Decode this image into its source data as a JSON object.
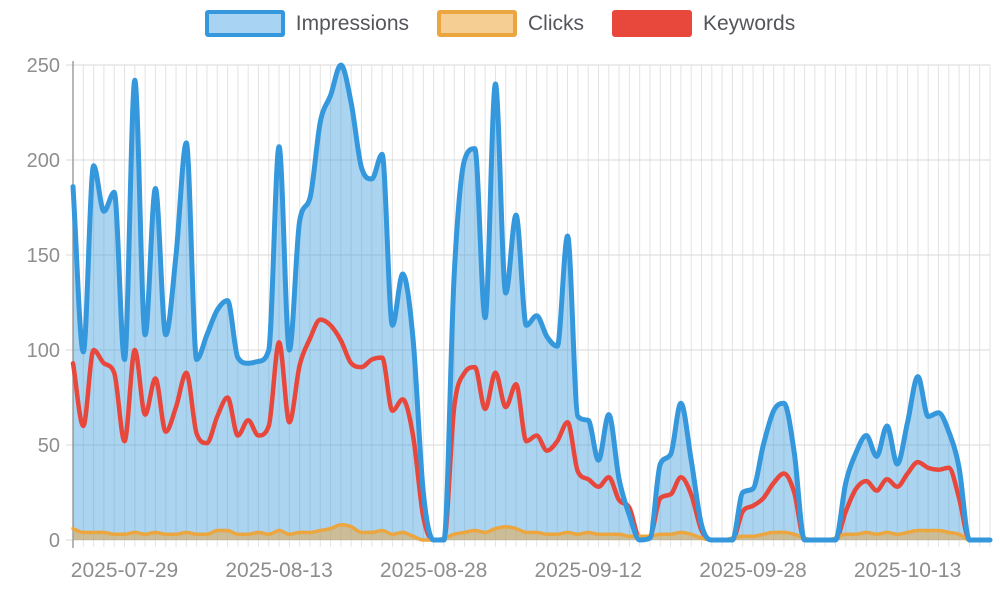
{
  "legend": {
    "items": [
      {
        "id": "impressions",
        "label": "Impressions",
        "swatch_fill": "#a9d3f2",
        "swatch_border": "#3598dc"
      },
      {
        "id": "clicks",
        "label": "Clicks",
        "swatch_fill": "#f4ce93",
        "swatch_border": "#eca63f"
      },
      {
        "id": "keywords",
        "label": "Keywords",
        "swatch_fill": "#e8473c",
        "swatch_border": "#e8473c"
      }
    ]
  },
  "chart_data": {
    "type": "area",
    "title": "",
    "xlabel": "",
    "ylabel": "",
    "n_points": 90,
    "ylim": [
      0,
      250
    ],
    "yticks": [
      0,
      50,
      100,
      150,
      200,
      250
    ],
    "xticks": [
      {
        "index": 5,
        "label": "2025-07-29"
      },
      {
        "index": 20,
        "label": "2025-08-13"
      },
      {
        "index": 35,
        "label": "2025-08-28"
      },
      {
        "index": 50,
        "label": "2025-09-12"
      },
      {
        "index": 66,
        "label": "2025-09-28"
      },
      {
        "index": 81,
        "label": "2025-10-13"
      }
    ],
    "grid": "both",
    "legend_position": "top",
    "style": {
      "grid_vertical_color": "#e3e3e3",
      "grid_horizontal_color": "#d9d9d9",
      "axis_line_color": "#9f9f9f",
      "tick_text_color": "#8e8e8e",
      "background": "#ffffff"
    },
    "series": [
      {
        "name": "Impressions",
        "style": "area",
        "color": "#3598dc",
        "fill": "rgba(53,152,220,0.42)",
        "line_width": 5,
        "values": [
          186,
          99,
          197,
          173,
          183,
          95,
          242,
          108,
          185,
          108,
          150,
          209,
          95,
          108,
          121,
          126,
          96,
          93,
          94,
          100,
          207,
          100,
          168,
          180,
          220,
          234,
          250,
          230,
          196,
          190,
          203,
          113,
          140,
          106,
          25,
          0,
          0,
          140,
          200,
          206,
          117,
          240,
          130,
          171,
          113,
          118,
          107,
          102,
          160,
          65,
          63,
          42,
          66,
          32,
          13,
          0,
          1,
          40,
          45,
          72,
          42,
          8,
          0,
          0,
          0,
          25,
          27,
          50,
          68,
          72,
          46,
          0,
          0,
          0,
          0,
          30,
          46,
          55,
          44,
          60,
          40,
          62,
          86,
          65,
          67,
          57,
          38,
          0,
          0,
          0
        ]
      },
      {
        "name": "Clicks",
        "style": "area",
        "color": "#eca63f",
        "fill": "rgba(236,166,63,0.5)",
        "line_width": 3.5,
        "values": [
          6,
          4,
          4,
          4,
          3,
          3,
          4,
          3,
          4,
          3,
          3,
          4,
          3,
          3,
          5,
          5,
          3,
          3,
          4,
          3,
          5,
          3,
          4,
          4,
          5,
          6,
          8,
          7,
          4,
          4,
          5,
          3,
          4,
          2,
          0,
          0,
          1,
          3,
          4,
          5,
          4,
          6,
          7,
          6,
          4,
          4,
          3,
          3,
          4,
          3,
          4,
          3,
          3,
          3,
          2,
          2,
          2,
          3,
          3,
          4,
          3,
          1,
          0,
          0,
          1,
          2,
          2,
          3,
          4,
          4,
          3,
          1,
          0,
          0,
          1,
          3,
          3,
          4,
          3,
          4,
          3,
          4,
          5,
          5,
          5,
          4,
          3,
          0,
          0,
          0
        ]
      },
      {
        "name": "Keywords",
        "style": "line",
        "color": "#e8473c",
        "fill": "none",
        "line_width": 4.5,
        "values": [
          93,
          60,
          100,
          93,
          88,
          52,
          100,
          66,
          85,
          57,
          70,
          88,
          56,
          51,
          65,
          75,
          55,
          63,
          55,
          60,
          104,
          62,
          92,
          106,
          116,
          113,
          105,
          93,
          91,
          95,
          96,
          68,
          74,
          55,
          12,
          0,
          0,
          70,
          88,
          91,
          69,
          88,
          70,
          82,
          52,
          55,
          47,
          52,
          62,
          36,
          32,
          28,
          33,
          21,
          17,
          1,
          2,
          22,
          24,
          33,
          24,
          5,
          0,
          0,
          0,
          15,
          18,
          22,
          30,
          35,
          25,
          0,
          0,
          0,
          0,
          15,
          27,
          31,
          26,
          32,
          28,
          35,
          41,
          38,
          37,
          38,
          22,
          0,
          0,
          0
        ]
      }
    ]
  }
}
